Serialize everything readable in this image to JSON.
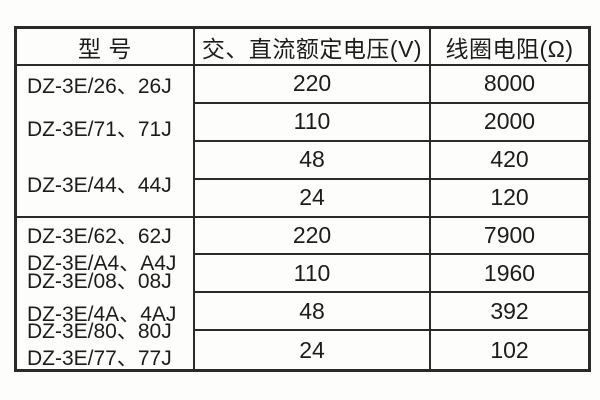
{
  "colors": {
    "border": "#2a2a2a",
    "text": "#1c1c1c",
    "background": "#fdfdfc"
  },
  "table": {
    "headers": {
      "model": "型 号",
      "voltage": "交、直流额定电压(V)",
      "resistance": "线圈电阻(Ω)"
    },
    "groups": [
      {
        "models": [
          "DZ-3E/26、26J",
          "DZ-3E/71、71J",
          "DZ-3E/44、44J"
        ],
        "rows": [
          {
            "voltage": "220",
            "resistance": "8000"
          },
          {
            "voltage": "110",
            "resistance": "2000"
          },
          {
            "voltage": "48",
            "resistance": "420"
          },
          {
            "voltage": "24",
            "resistance": "120"
          }
        ]
      },
      {
        "models": [
          "DZ-3E/62、62J",
          "DZ-3E/A4、A4J",
          "DZ-3E/08、08J",
          "DZ-3E/4A、4AJ",
          "DZ-3E/80、80J",
          "DZ-3E/77、77J"
        ],
        "rows": [
          {
            "voltage": "220",
            "resistance": "7900"
          },
          {
            "voltage": "110",
            "resistance": "1960"
          },
          {
            "voltage": "48",
            "resistance": "392"
          },
          {
            "voltage": "24",
            "resistance": "102"
          }
        ]
      }
    ]
  }
}
